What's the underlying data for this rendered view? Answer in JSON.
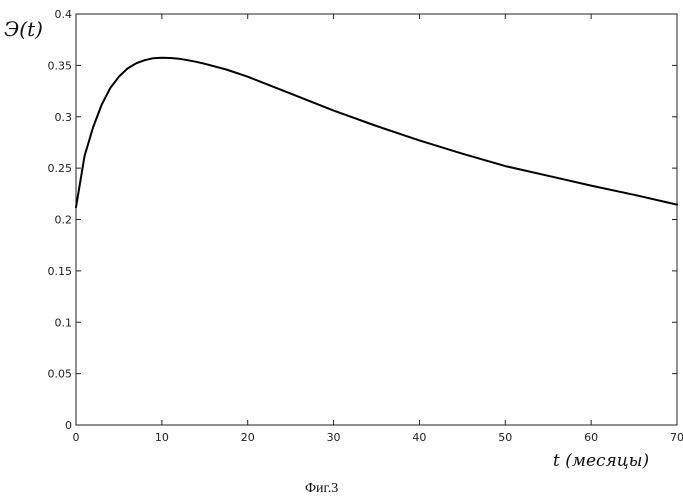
{
  "chart_data": {
    "type": "line",
    "ylabel": "Э(t)",
    "xlabel": "t (месяцы)",
    "caption": "Фиг.3",
    "xlim": [
      0,
      70
    ],
    "ylim": [
      0,
      0.4
    ],
    "x_ticks": [
      0,
      10,
      20,
      30,
      40,
      50,
      60,
      70
    ],
    "x_tick_labels": [
      "0",
      "10",
      "20",
      "30",
      "40",
      "50",
      "60",
      "70"
    ],
    "y_ticks": [
      0,
      0.05,
      0.1,
      0.15,
      0.2,
      0.25,
      0.3,
      0.35,
      0.4
    ],
    "y_tick_labels": [
      "0",
      "0.05",
      "0.1",
      "0.15",
      "0.2",
      "0.25",
      "0.3",
      "0.35",
      "0.4"
    ],
    "grid": false,
    "series": [
      {
        "x": [
          0,
          1,
          2,
          3,
          4,
          5,
          6,
          7,
          8,
          9,
          10,
          11,
          12,
          13,
          14,
          15,
          17.5,
          20,
          25,
          30,
          35,
          40,
          45,
          50,
          55,
          60,
          65,
          70
        ],
        "values": [
          0.212,
          0.262,
          0.29,
          0.312,
          0.328,
          0.339,
          0.347,
          0.352,
          0.355,
          0.357,
          0.3575,
          0.3572,
          0.3565,
          0.355,
          0.3535,
          0.3515,
          0.346,
          0.339,
          0.3225,
          0.306,
          0.291,
          0.277,
          0.264,
          0.252,
          0.2425,
          0.233,
          0.224,
          0.2145
        ]
      }
    ]
  }
}
